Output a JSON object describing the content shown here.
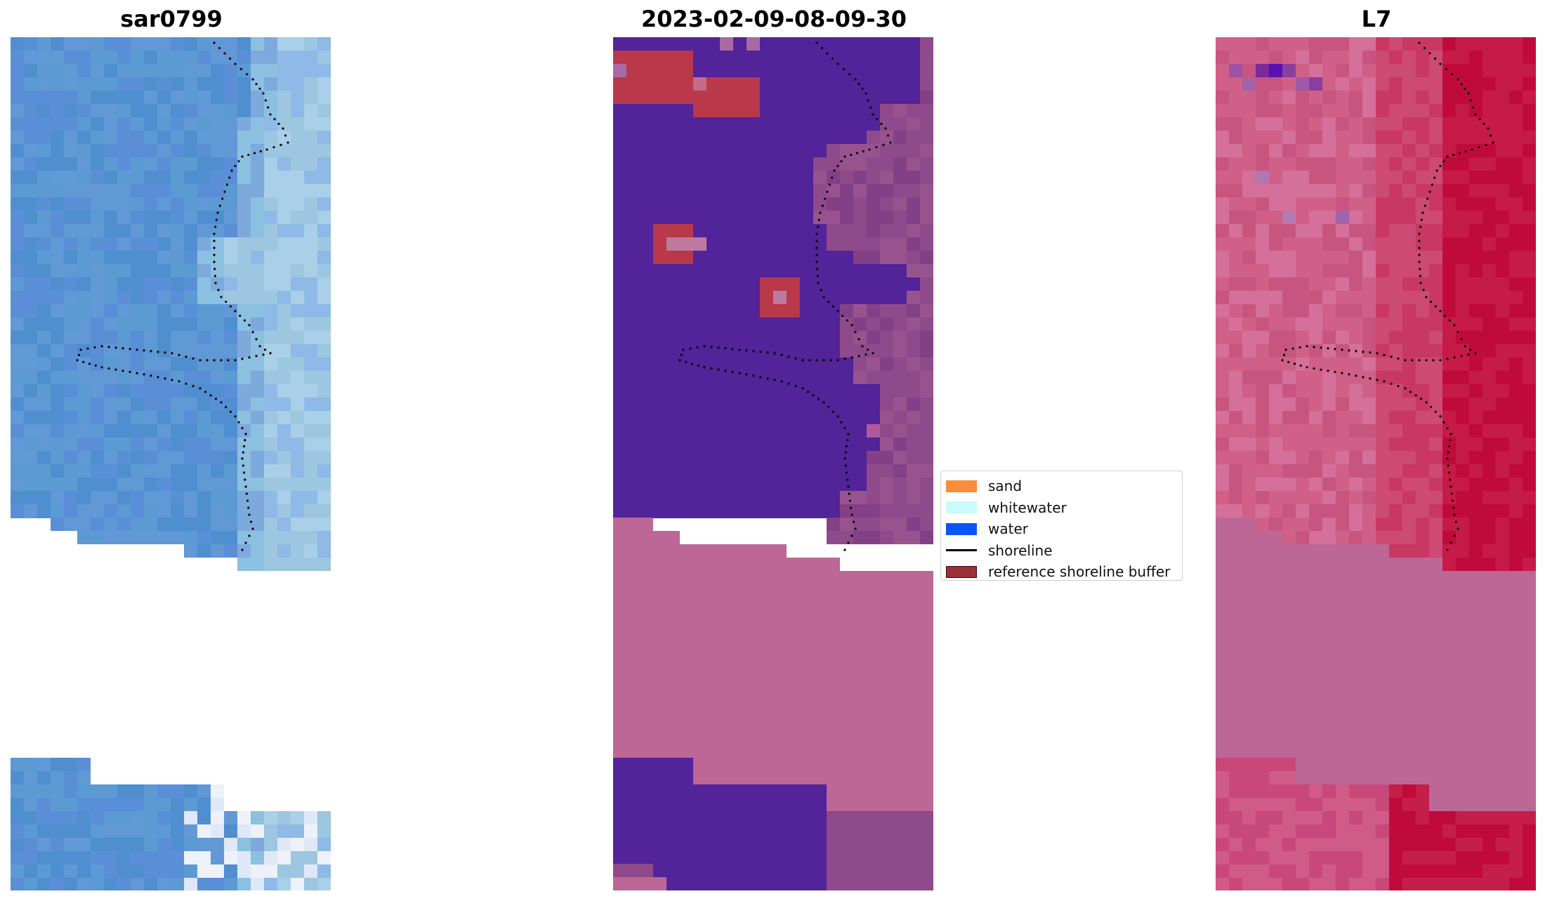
{
  "panels": [
    {
      "title": "sar0799"
    },
    {
      "title": "2023-02-09-08-09-30"
    },
    {
      "title": "L7"
    }
  ],
  "legend": {
    "items": [
      {
        "label": "sand",
        "color": "#f98d3a"
      },
      {
        "label": "whitewater",
        "color": "#c9fbfb"
      },
      {
        "label": "water",
        "color": "#0a56f5"
      },
      {
        "label": "shoreline",
        "color": "#000000"
      },
      {
        "label": "reference shoreline buffer",
        "color": "#9b2e36"
      }
    ]
  },
  "colors": {
    "water_class": "#522399",
    "buffer": "#b9384a",
    "land_overlay": "#8e4a8b",
    "nodata_pink": "#bd6797",
    "l7_red": "#c10a3c"
  }
}
